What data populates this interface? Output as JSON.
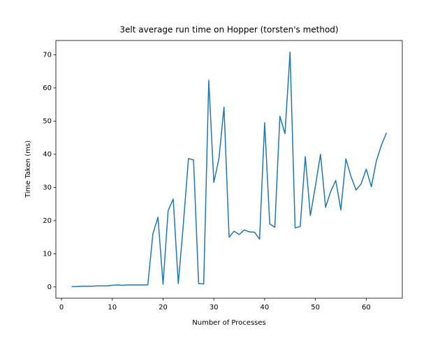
{
  "chart_data": {
    "type": "line",
    "title": "3elt average run time on Hopper (torsten's method)",
    "x_label": "Number of Processes",
    "y_label": "Time Taken (ms)",
    "x": [
      2,
      3,
      4,
      5,
      6,
      7,
      8,
      9,
      10,
      11,
      12,
      13,
      14,
      15,
      16,
      17,
      18,
      19,
      20,
      21,
      22,
      23,
      24,
      25,
      26,
      27,
      28,
      29,
      30,
      31,
      32,
      33,
      34,
      35,
      36,
      37,
      38,
      39,
      40,
      41,
      42,
      43,
      44,
      45,
      46,
      47,
      48,
      49,
      50,
      51,
      52,
      53,
      54,
      55,
      56,
      57,
      58,
      59,
      60,
      61,
      62,
      63,
      64
    ],
    "series": [
      {
        "color": "#1f77b4",
        "values": [
          0.1,
          0.1,
          0.2,
          0.2,
          0.2,
          0.3,
          0.3,
          0.3,
          0.5,
          0.6,
          0.5,
          0.6,
          0.6,
          0.6,
          0.6,
          0.6,
          16,
          21,
          0.8,
          23,
          26.5,
          1,
          19,
          38.7,
          38.3,
          1,
          0.9,
          62.3,
          31.5,
          38.7,
          54.2,
          15,
          16.8,
          15.8,
          17.2,
          16.6,
          16.5,
          14.4,
          49.5,
          19,
          18,
          51.5,
          46.2,
          70.8,
          17.8,
          18.2,
          39.3,
          21.5,
          30.5,
          40,
          24,
          28.8,
          32.1,
          23.2,
          38.6,
          33.3,
          29.2,
          31.1,
          35.5,
          30.2,
          38,
          42.8,
          46.5
        ]
      }
    ],
    "xlim": [
      -1.1,
      67.1
    ],
    "ylim": [
      -3.4,
      74.3
    ],
    "xticks": [
      0,
      10,
      20,
      30,
      40,
      50,
      60
    ],
    "yticks": [
      0,
      10,
      20,
      30,
      40,
      50,
      60,
      70
    ]
  }
}
